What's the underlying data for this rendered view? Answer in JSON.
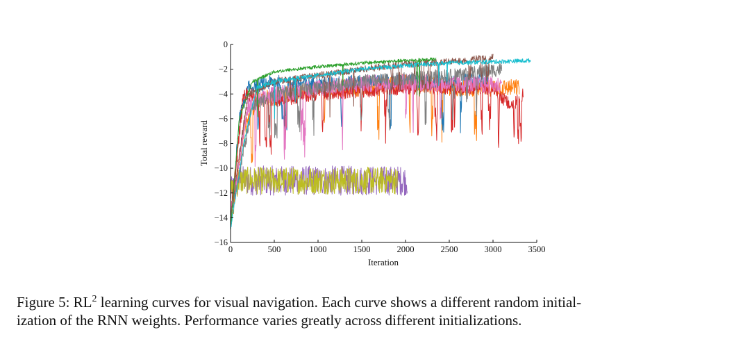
{
  "chart_data": {
    "type": "line",
    "title": "",
    "xlabel": "Iteration",
    "ylabel": "Total reward",
    "xlim": [
      0,
      3500
    ],
    "ylim": [
      -16,
      0
    ],
    "xticks": [
      "0",
      "500",
      "1000",
      "1500",
      "2000",
      "2500",
      "3000",
      "3500"
    ],
    "yticks": [
      "0",
      "−2",
      "−4",
      "−6",
      "−8",
      "−10",
      "−12",
      "−14",
      "−16"
    ],
    "grid": false,
    "legend": "none",
    "series": [
      {
        "name": "run-purple",
        "color": "#9467bd",
        "noise": 1.2,
        "x": [
          0,
          100,
          2020
        ],
        "y": [
          -12,
          -11,
          -11
        ]
      },
      {
        "name": "run-olive",
        "color": "#bcbd22",
        "noise": 1.1,
        "x": [
          0,
          100,
          1910
        ],
        "y": [
          -12,
          -11,
          -11
        ]
      },
      {
        "name": "run-orange",
        "color": "#ff7f0e",
        "noise": 1.0,
        "x": [
          0,
          150,
          300,
          1000,
          1500,
          2000,
          2500,
          3300
        ],
        "y": [
          -15,
          -7,
          -4.5,
          -3.5,
          -3.5,
          -3,
          -3.5,
          -3.5
        ]
      },
      {
        "name": "run-blue",
        "color": "#1f77b4",
        "noise": 0.8,
        "x": [
          0,
          100,
          200,
          500,
          1000,
          1500,
          2000,
          2500,
          2950
        ],
        "y": [
          -15,
          -6,
          -3.5,
          -3,
          -3.2,
          -3,
          -3,
          -3,
          -2.8
        ]
      },
      {
        "name": "run-red",
        "color": "#d62728",
        "noise": 0.8,
        "x": [
          0,
          150,
          500,
          1000,
          2000,
          3000,
          3200,
          3350
        ],
        "y": [
          -14,
          -4,
          -4.5,
          -4,
          -3.5,
          -3.5,
          -5,
          -4
        ]
      },
      {
        "name": "run-pink",
        "color": "#e377c2",
        "noise": 1.0,
        "x": [
          0,
          200,
          500,
          1000,
          1500,
          2000,
          2500,
          3100
        ],
        "y": [
          -14,
          -5,
          -4,
          -3.5,
          -3.2,
          -3,
          -3.2,
          -3.3
        ]
      },
      {
        "name": "run-gray",
        "color": "#7f7f7f",
        "noise": 0.8,
        "x": [
          0,
          250,
          500,
          1000,
          1500,
          2000,
          2500,
          3100
        ],
        "y": [
          -14,
          -5,
          -4,
          -3.5,
          -3,
          -2.8,
          -2.5,
          -2
        ]
      },
      {
        "name": "run-brown",
        "color": "#8c564b",
        "noise": 0.4,
        "x": [
          0,
          200,
          500,
          1000,
          1500,
          2000,
          2500,
          3000
        ],
        "y": [
          -14,
          -4,
          -3,
          -2.5,
          -2,
          -1.6,
          -1.4,
          -1
        ]
      },
      {
        "name": "run-green",
        "color": "#2ca02c",
        "noise": 0.2,
        "x": [
          0,
          100,
          250,
          500,
          1000,
          1500,
          2000,
          2350
        ],
        "y": [
          -15,
          -6,
          -3,
          -2.2,
          -1.8,
          -1.5,
          -1.3,
          -1.2
        ]
      },
      {
        "name": "run-cyan",
        "color": "#17becf",
        "noise": 0.25,
        "x": [
          0,
          150,
          300,
          500,
          1000,
          1500,
          2000,
          2500,
          3000,
          3430
        ],
        "y": [
          -15,
          -8,
          -3.5,
          -3,
          -2.5,
          -2,
          -1.7,
          -1.5,
          -1.4,
          -1.3
        ]
      }
    ]
  },
  "caption": {
    "prefix": "Figure 5: RL",
    "superscript": "2",
    "line1_rest": " learning curves for visual navigation. Each curve shows a different random initial-",
    "line2": "ization of the RNN weights. Performance varies greatly across different initializations."
  }
}
